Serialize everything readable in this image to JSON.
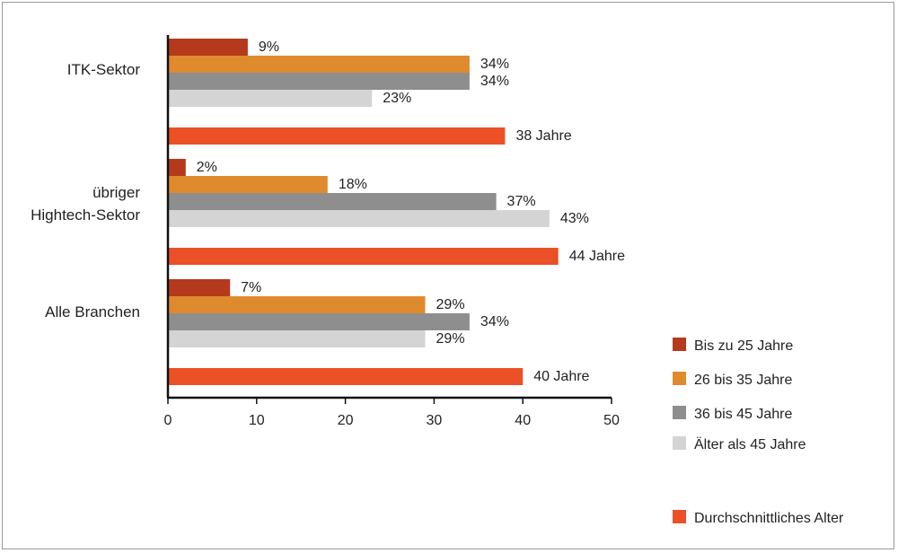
{
  "chart_data": {
    "type": "bar",
    "orientation": "horizontal",
    "categories": [
      [
        "ITK-Sektor"
      ],
      [
        "übriger",
        "Hightech-Sektor"
      ],
      [
        "Alle Branchen"
      ]
    ],
    "series": [
      {
        "name": "Bis zu 25 Jahre",
        "color": "#b5391c",
        "values": [
          9,
          2,
          7
        ],
        "labels": [
          "9%",
          "2%",
          "7%"
        ]
      },
      {
        "name": "26 bis 35 Jahre",
        "color": "#e08a2e",
        "values": [
          34,
          18,
          29
        ],
        "labels": [
          "34%",
          "18%",
          "29%"
        ]
      },
      {
        "name": "36 bis 45 Jahre",
        "color": "#8e8e8e",
        "values": [
          34,
          37,
          34
        ],
        "labels": [
          "34%",
          "37%",
          "34%"
        ]
      },
      {
        "name": "Älter als 45 Jahre",
        "color": "#d4d4d4",
        "values": [
          23,
          43,
          29
        ],
        "labels": [
          "23%",
          "43%",
          "29%"
        ]
      },
      {
        "name": "Durchschnittliches Alter",
        "color": "#eb5027",
        "values": [
          38,
          44,
          40
        ],
        "labels": [
          "38 Jahre",
          "44 Jahre",
          "40 Jahre"
        ]
      }
    ],
    "xlim": [
      0,
      50
    ],
    "xticks": [
      0,
      10,
      20,
      30,
      40,
      50
    ],
    "legend_position": "bottom-right"
  }
}
